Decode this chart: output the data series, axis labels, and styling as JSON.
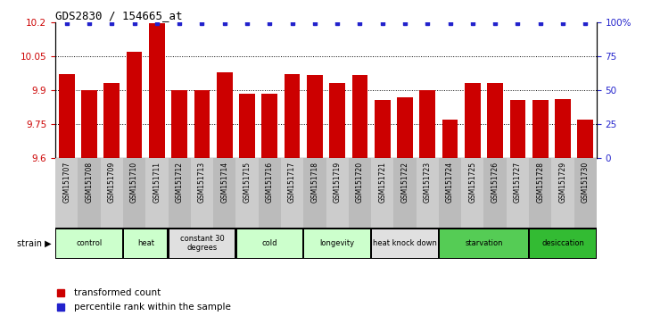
{
  "title": "GDS2830 / 154665_at",
  "samples": [
    "GSM151707",
    "GSM151708",
    "GSM151709",
    "GSM151710",
    "GSM151711",
    "GSM151712",
    "GSM151713",
    "GSM151714",
    "GSM151715",
    "GSM151716",
    "GSM151717",
    "GSM151718",
    "GSM151719",
    "GSM151720",
    "GSM151721",
    "GSM151722",
    "GSM151723",
    "GSM151724",
    "GSM151725",
    "GSM151726",
    "GSM151727",
    "GSM151728",
    "GSM151729",
    "GSM151730"
  ],
  "values": [
    9.97,
    9.9,
    9.93,
    10.07,
    10.195,
    9.9,
    9.9,
    9.98,
    9.885,
    9.885,
    9.97,
    9.965,
    9.93,
    9.965,
    9.855,
    9.87,
    9.9,
    9.77,
    9.93,
    9.93,
    9.855,
    9.855,
    9.86,
    9.77
  ],
  "percentile_values": [
    99,
    99,
    99,
    99,
    99,
    99,
    99,
    99,
    99,
    99,
    99,
    99,
    99,
    99,
    99,
    99,
    99,
    99,
    99,
    99,
    99,
    99,
    99,
    99
  ],
  "bar_color": "#cc0000",
  "dot_color": "#2222cc",
  "ylim_left": [
    9.6,
    10.2
  ],
  "ylim_right": [
    0,
    100
  ],
  "yticks_left": [
    9.6,
    9.75,
    9.9,
    10.05,
    10.2
  ],
  "yticks_right": [
    0,
    25,
    50,
    75,
    100
  ],
  "ytick_labels_left": [
    "9.6",
    "9.75",
    "9.9",
    "10.05",
    "10.2"
  ],
  "ytick_labels_right": [
    "0",
    "25",
    "50",
    "75",
    "100%"
  ],
  "grid_lines": [
    9.75,
    9.9,
    10.05
  ],
  "groups": [
    {
      "label": "control",
      "start": 0,
      "end": 2,
      "color": "#ccffcc"
    },
    {
      "label": "heat",
      "start": 3,
      "end": 4,
      "color": "#ccffcc"
    },
    {
      "label": "constant 30\ndegrees",
      "start": 5,
      "end": 7,
      "color": "#e0e0e0"
    },
    {
      "label": "cold",
      "start": 8,
      "end": 10,
      "color": "#ccffcc"
    },
    {
      "label": "longevity",
      "start": 11,
      "end": 13,
      "color": "#ccffcc"
    },
    {
      "label": "heat knock down",
      "start": 14,
      "end": 16,
      "color": "#e0e0e0"
    },
    {
      "label": "starvation",
      "start": 17,
      "end": 20,
      "color": "#55cc55"
    },
    {
      "label": "desiccation",
      "start": 21,
      "end": 23,
      "color": "#33bb33"
    }
  ],
  "sample_bg_colors": [
    "#cccccc",
    "#dddddd",
    "#cccccc",
    "#dddddd",
    "#cccccc",
    "#dddddd",
    "#cccccc",
    "#dddddd",
    "#cccccc",
    "#dddddd",
    "#cccccc",
    "#dddddd",
    "#cccccc",
    "#dddddd",
    "#cccccc",
    "#dddddd",
    "#cccccc",
    "#dddddd",
    "#cccccc",
    "#dddddd",
    "#cccccc",
    "#dddddd",
    "#cccccc",
    "#dddddd"
  ],
  "legend_label_count": "transformed count",
  "legend_label_percentile": "percentile rank within the sample"
}
